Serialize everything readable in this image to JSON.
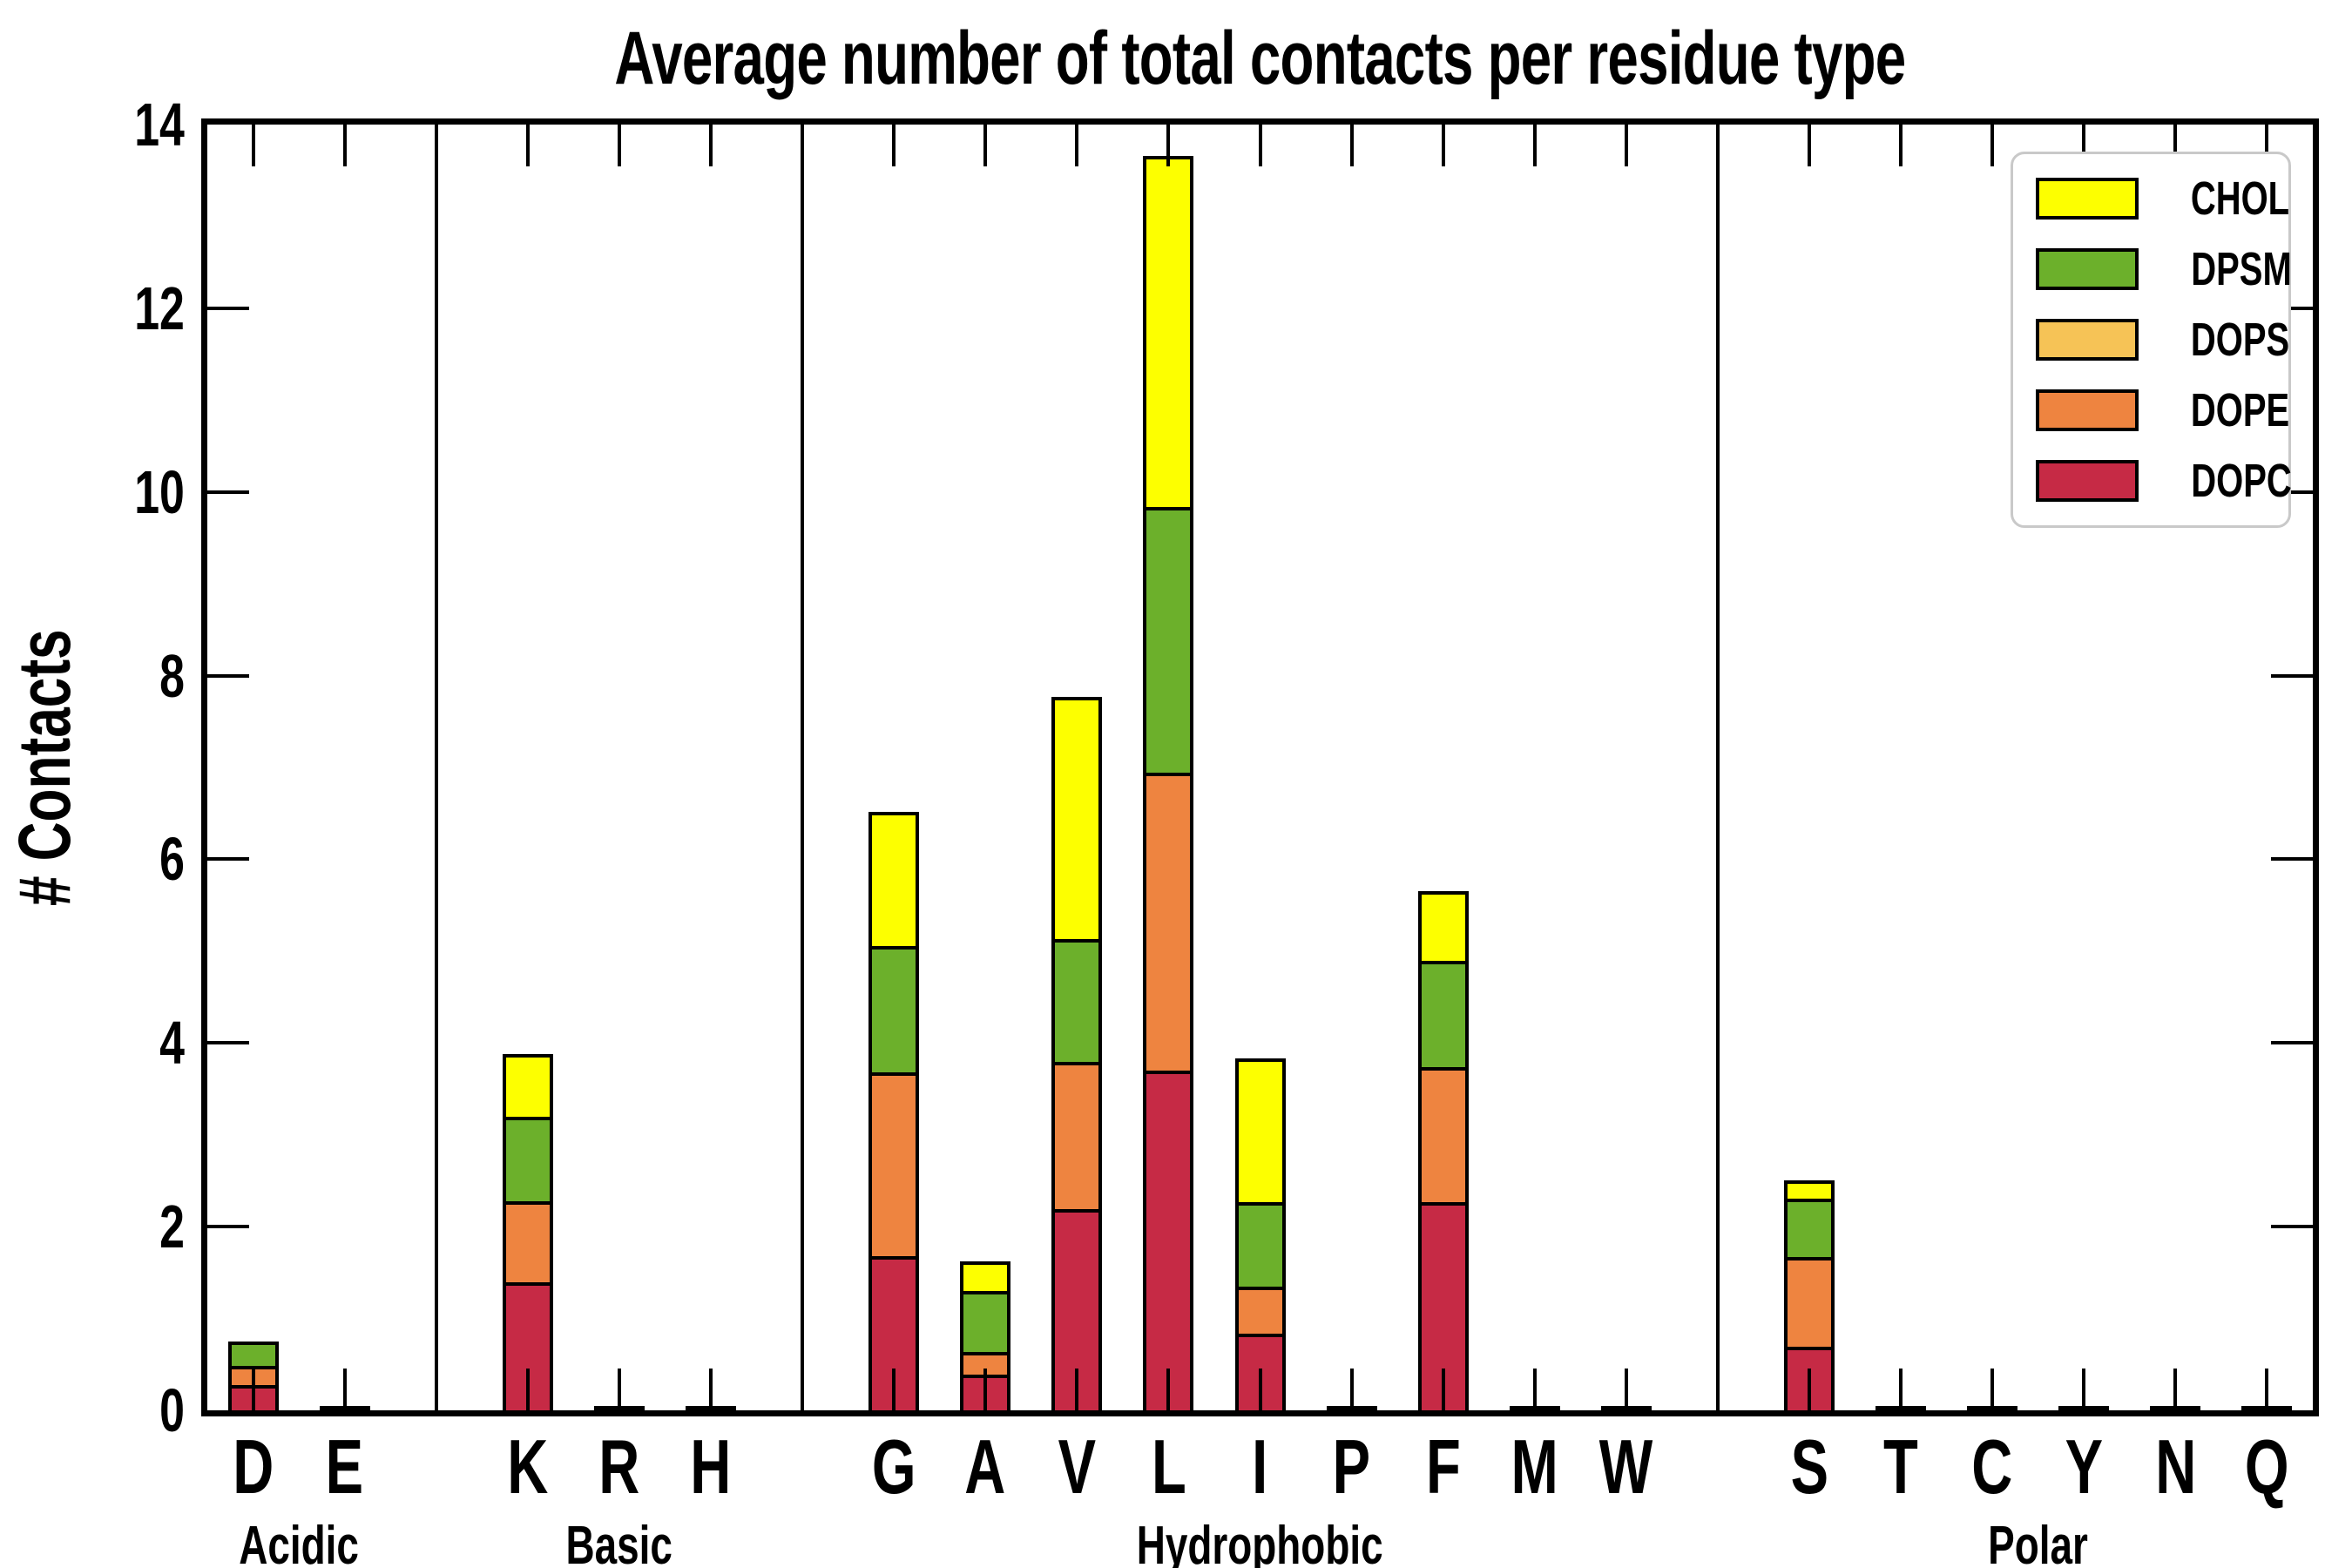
{
  "title": "Average number of total contacts per residue type",
  "ylabel": "# Contacts",
  "legend": [
    {
      "name": "CHOL",
      "color": "#fdff00"
    },
    {
      "name": "DPSM",
      "color": "#6cb02b"
    },
    {
      "name": "DOPS",
      "color": "#f6c356"
    },
    {
      "name": "DOPE",
      "color": "#ee8440"
    },
    {
      "name": "DOPC",
      "color": "#c62a45"
    }
  ],
  "colors": {
    "CHOL": "#fdff00",
    "DPSM": "#6cb02b",
    "DOPS": "#f6c356",
    "DOPE": "#ee8440",
    "DOPC": "#c62a45",
    "axis": "#000000",
    "legend_border": "#c9c9c9"
  },
  "chart_data": {
    "type": "bar",
    "stacked": true,
    "title": "Average number of total contacts per residue type",
    "xlabel": "",
    "ylabel": "# Contacts",
    "ylim": [
      0,
      14
    ],
    "yticks": [
      0,
      2,
      4,
      6,
      8,
      10,
      12,
      14
    ],
    "grid": false,
    "legend_position": "upper right",
    "categories": [
      "D",
      "E",
      "K",
      "R",
      "H",
      "G",
      "A",
      "V",
      "L",
      "I",
      "P",
      "F",
      "M",
      "W",
      "S",
      "T",
      "C",
      "Y",
      "N",
      "Q"
    ],
    "groups": [
      {
        "label": "Acidic",
        "letters": [
          "D",
          "E"
        ]
      },
      {
        "label": "Basic",
        "letters": [
          "K",
          "R",
          "H"
        ]
      },
      {
        "label": "Hydrophobic",
        "letters": [
          "G",
          "A",
          "V",
          "L",
          "I",
          "P",
          "F",
          "M",
          "W"
        ]
      },
      {
        "label": "Polar",
        "letters": [
          "S",
          "T",
          "C",
          "Y",
          "N",
          "Q"
        ]
      }
    ],
    "series": [
      {
        "name": "DOPC",
        "values": [
          0.24,
          0.02,
          1.36,
          0.02,
          0.02,
          1.64,
          0.35,
          2.15,
          3.66,
          0.8,
          0.02,
          2.23,
          0.02,
          0.02,
          0.65,
          0.02,
          0.02,
          0.02,
          0.02,
          0.02
        ]
      },
      {
        "name": "DOPE",
        "values": [
          0.21,
          0,
          0.88,
          0,
          0,
          2.0,
          0.25,
          1.61,
          3.25,
          0.51,
          0,
          1.47,
          0,
          0,
          0.98,
          0,
          0,
          0,
          0,
          0
        ]
      },
      {
        "name": "DOPS",
        "values": [
          0,
          0,
          0,
          0,
          0,
          0,
          0,
          0,
          0,
          0,
          0,
          0,
          0,
          0,
          0,
          0,
          0,
          0,
          0,
          0
        ]
      },
      {
        "name": "DPSM",
        "values": [
          0.26,
          0,
          0.92,
          0,
          0,
          1.38,
          0.66,
          1.33,
          2.89,
          0.92,
          0,
          1.16,
          0,
          0,
          0.64,
          0,
          0,
          0,
          0,
          0
        ]
      },
      {
        "name": "CHOL",
        "values": [
          0,
          0,
          0.68,
          0,
          0,
          1.46,
          0.32,
          2.64,
          3.82,
          1.56,
          0,
          0.76,
          0,
          0,
          0.2,
          0,
          0,
          0,
          0,
          0
        ]
      }
    ],
    "totals": {
      "D": 0.71,
      "E": 0.02,
      "K": 3.84,
      "R": 0.02,
      "H": 0.02,
      "G": 6.48,
      "A": 1.58,
      "V": 7.73,
      "L": 13.62,
      "I": 3.79,
      "P": 0.02,
      "F": 5.62,
      "M": 0.02,
      "W": 0.02,
      "S": 2.47,
      "T": 0.02,
      "C": 0.02,
      "Y": 0.02,
      "N": 0.02,
      "Q": 0.02
    }
  }
}
